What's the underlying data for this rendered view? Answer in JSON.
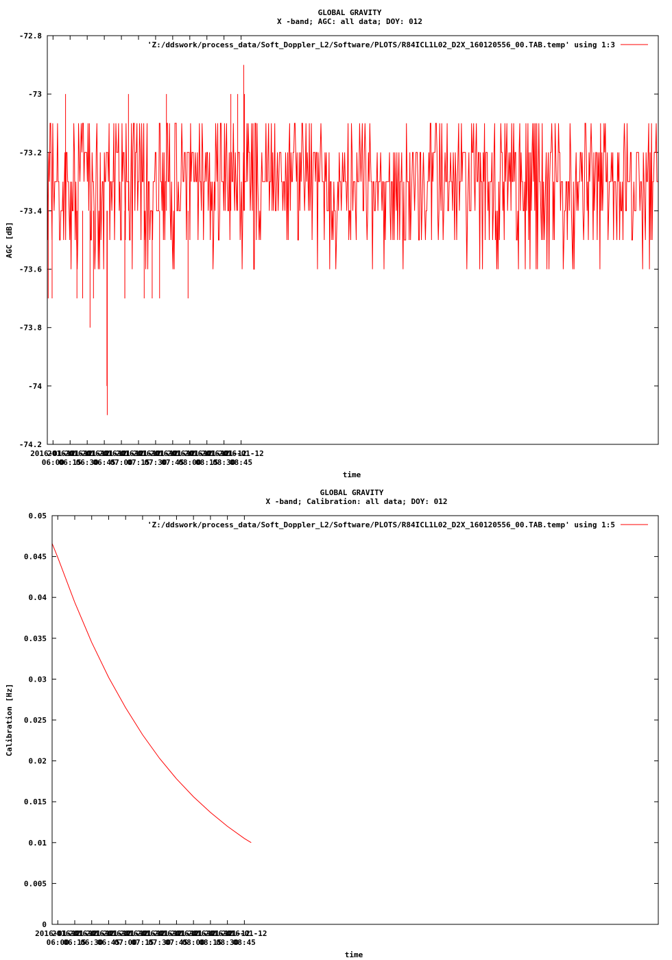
{
  "chart_data": [
    {
      "type": "line",
      "title": "GLOBAL GRAVITY",
      "subtitle": "X -band; AGC: all data; DOY: 012",
      "xlabel": "time",
      "ylabel": "AGC [dB]",
      "legend": "'Z:/ddswork/process_data/Soft_Doppler_L2/Software/PLOTS/R84ICL1L02_D2X_160120556_00.TAB.temp' using 1:3",
      "legend_position": "top-right",
      "series_color": "#ff0000",
      "ylim": [
        -74.2,
        -72.8
      ],
      "yticks": [
        -72.8,
        -73,
        -73.2,
        -73.4,
        -73.6,
        -73.8,
        -74,
        -74.2
      ],
      "ytick_labels": [
        "-72.8",
        "-73",
        "-73.2",
        "-73.4",
        "-73.6",
        "-73.8",
        "-74",
        "-74.2"
      ],
      "xlim_minutes": [
        355,
        891
      ],
      "xticks_minutes": [
        360,
        375,
        390,
        405,
        420,
        435,
        450,
        465,
        480,
        495,
        510,
        525
      ],
      "xtick_dates": [
        "2016-01-12",
        "2016-01-12",
        "2016-01-12",
        "2016-01-12",
        "2016-01-12",
        "2016-01-12",
        "2016-01-12",
        "2016-01-12",
        "2016-01-12",
        "2016-01-12",
        "2016-01-12",
        "2016-01-12"
      ],
      "xtick_times": [
        "06:00",
        "06:15",
        "06:30",
        "06:45",
        "07:00",
        "07:15",
        "07:30",
        "07:45",
        "08:00",
        "08:15",
        "08:30",
        "08:45"
      ],
      "levels": [
        -73.3,
        -73.2,
        -73.4,
        -73.3,
        -73.1,
        -73.5,
        -73.3,
        -73.2,
        -73.4,
        -73.6,
        -73.3,
        -73.2,
        -73.1,
        -73.4,
        -73.3,
        -73.5,
        -73.2,
        -73.3
      ],
      "spikes": [
        {
          "x": 355.8,
          "y": -73.7
        },
        {
          "x": 359.2,
          "y": -73.7
        },
        {
          "x": 371.0,
          "y": -73.0
        },
        {
          "x": 381.0,
          "y": -73.7
        },
        {
          "x": 386.0,
          "y": -73.7
        },
        {
          "x": 392.5,
          "y": -73.8
        },
        {
          "x": 395.5,
          "y": -73.7
        },
        {
          "x": 407.3,
          "y": -74.0
        },
        {
          "x": 407.6,
          "y": -74.1
        },
        {
          "x": 423.0,
          "y": -73.7
        },
        {
          "x": 423.0,
          "y": -73.7
        },
        {
          "x": 426.2,
          "y": -73.0
        },
        {
          "x": 440.0,
          "y": -73.7
        },
        {
          "x": 447.0,
          "y": -73.7
        },
        {
          "x": 453.5,
          "y": -73.7
        },
        {
          "x": 459.5,
          "y": -73.0
        },
        {
          "x": 478.5,
          "y": -73.7
        },
        {
          "x": 516.0,
          "y": -73.0
        },
        {
          "x": 522.0,
          "y": -73.0
        },
        {
          "x": 528.0,
          "y": -73.0
        },
        {
          "x": 527.3,
          "y": -72.9
        }
      ]
    },
    {
      "type": "line",
      "title": "GLOBAL GRAVITY",
      "subtitle": "X -band; Calibration: all data; DOY: 012",
      "xlabel": "time",
      "ylabel": "Calibration [Hz]",
      "legend": "'Z:/ddswork/process_data/Soft_Doppler_L2/Software/PLOTS/R84ICL1L02_D2X_160120556_00.TAB.temp' using 1:5",
      "legend_position": "top-right",
      "series_color": "#ff0000",
      "ylim": [
        0,
        0.05
      ],
      "yticks": [
        0,
        0.005,
        0.01,
        0.015,
        0.02,
        0.025,
        0.03,
        0.035,
        0.04,
        0.045,
        0.05
      ],
      "ytick_labels": [
        "0",
        "0.005",
        "0.01",
        "0.015",
        "0.02",
        "0.025",
        "0.03",
        "0.035",
        "0.04",
        "0.045",
        "0.05"
      ],
      "xlim_minutes": [
        355,
        891
      ],
      "xticks_minutes": [
        360,
        375,
        390,
        405,
        420,
        435,
        450,
        465,
        480,
        495,
        510,
        525
      ],
      "xtick_dates": [
        "2016-01-12",
        "2016-01-12",
        "2016-01-12",
        "2016-01-12",
        "2016-01-12",
        "2016-01-12",
        "2016-01-12",
        "2016-01-12",
        "2016-01-12",
        "2016-01-12",
        "2016-01-12",
        "2016-01-12"
      ],
      "xtick_times": [
        "06:00",
        "06:15",
        "06:30",
        "06:45",
        "07:00",
        "07:15",
        "07:30",
        "07:45",
        "08:00",
        "08:15",
        "08:30",
        "08:45"
      ],
      "x_minutes": [
        355,
        360,
        375,
        390,
        405,
        420,
        435,
        450,
        465,
        480,
        495,
        510,
        525,
        531
      ],
      "y": [
        0.0466,
        0.0449,
        0.0394,
        0.0345,
        0.0302,
        0.0265,
        0.0232,
        0.0203,
        0.0178,
        0.0156,
        0.0137,
        0.012,
        0.0105,
        0.01
      ]
    }
  ]
}
